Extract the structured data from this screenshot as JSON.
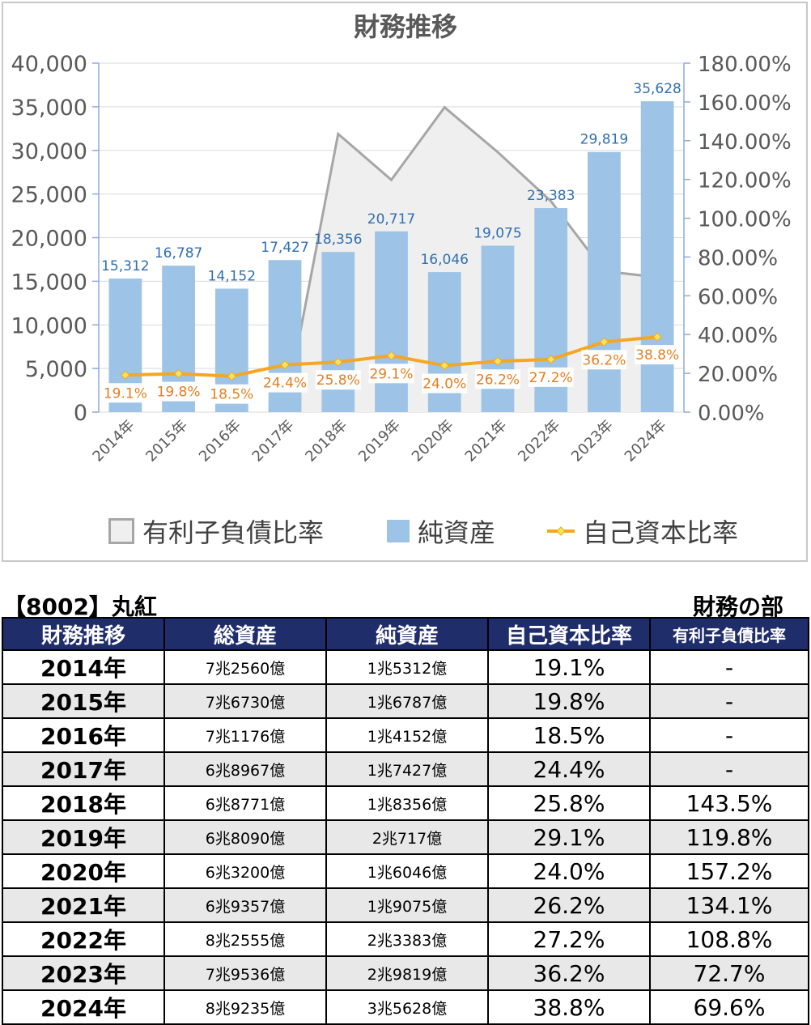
{
  "chart_data": {
    "type": "bar",
    "title": "財務推移",
    "categories": [
      "2014年",
      "2015年",
      "2016年",
      "2017年",
      "2018年",
      "2019年",
      "2020年",
      "2021年",
      "2022年",
      "2023年",
      "2024年"
    ],
    "y_left": {
      "ticks": [
        "0",
        "5,000",
        "10,000",
        "15,000",
        "20,000",
        "25,000",
        "30,000",
        "35,000",
        "40,000"
      ],
      "range": [
        0,
        40000
      ]
    },
    "y_right": {
      "ticks": [
        "0.00%",
        "20.00%",
        "40.00%",
        "60.00%",
        "80.00%",
        "100.00%",
        "120.00%",
        "140.00%",
        "160.00%",
        "180.00%"
      ],
      "range": [
        0,
        180
      ]
    },
    "series": [
      {
        "name": "有利子負債比率",
        "kind": "area",
        "axis": "right",
        "color": "#a6a6a6",
        "fill": "#efefef",
        "values": [
          null,
          null,
          null,
          0,
          143.5,
          119.8,
          157.2,
          134.1,
          108.8,
          72.7,
          69.6
        ]
      },
      {
        "name": "純資産",
        "kind": "bar",
        "axis": "left",
        "color": "#9dc3e6",
        "values": [
          15312,
          16787,
          14152,
          17427,
          18356,
          20717,
          16046,
          19075,
          23383,
          29819,
          35628
        ],
        "labels": [
          "15,312",
          "16,787",
          "14,152",
          "17,427",
          "18,356",
          "20,717",
          "16,046",
          "19,075",
          "23,383",
          "29,819",
          "35,628"
        ]
      },
      {
        "name": "自己資本比率",
        "kind": "line",
        "axis": "right",
        "color": "#f5a623",
        "values": [
          19.1,
          19.8,
          18.5,
          24.4,
          25.8,
          29.1,
          24.0,
          26.2,
          27.2,
          36.2,
          38.8
        ],
        "labels": [
          "19.1%",
          "19.8%",
          "18.5%",
          "24.4%",
          "25.8%",
          "29.1%",
          "24.0%",
          "26.2%",
          "27.2%",
          "36.2%",
          "38.8%"
        ]
      }
    ],
    "legend": [
      "有利子負債比率",
      "純資産",
      "自己資本比率"
    ],
    "legend_position": "bottom",
    "grid": true
  },
  "company": "【8002】丸紅",
  "section": "財務の部",
  "table": {
    "headers": [
      "財務推移",
      "総資産",
      "純資産",
      "自己資本比率",
      "有利子負債比率"
    ],
    "rows": [
      [
        "2014年",
        "7兆2560億",
        "1兆5312億",
        "19.1%",
        "-"
      ],
      [
        "2015年",
        "7兆6730億",
        "1兆6787億",
        "19.8%",
        "-"
      ],
      [
        "2016年",
        "7兆1176億",
        "1兆4152億",
        "18.5%",
        "-"
      ],
      [
        "2017年",
        "6兆8967億",
        "1兆7427億",
        "24.4%",
        "-"
      ],
      [
        "2018年",
        "6兆8771億",
        "1兆8356億",
        "25.8%",
        "143.5%"
      ],
      [
        "2019年",
        "6兆8090億",
        "2兆717億",
        "29.1%",
        "119.8%"
      ],
      [
        "2020年",
        "6兆3200億",
        "1兆6046億",
        "24.0%",
        "157.2%"
      ],
      [
        "2021年",
        "6兆9357億",
        "1兆9075億",
        "26.2%",
        "134.1%"
      ],
      [
        "2022年",
        "8兆2555億",
        "2兆3383億",
        "27.2%",
        "108.8%"
      ],
      [
        "2023年",
        "7兆9536億",
        "2兆9819億",
        "36.2%",
        "72.7%"
      ],
      [
        "2024年",
        "8兆9235億",
        "3兆5628億",
        "38.8%",
        "69.6%"
      ]
    ]
  }
}
